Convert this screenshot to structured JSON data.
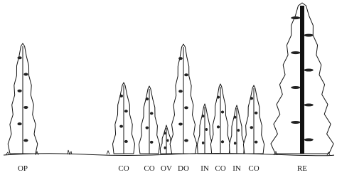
{
  "labels": [
    "OP",
    "CO",
    "CO",
    "OV",
    "DO",
    "IN",
    "CO",
    "IN",
    "CO",
    "RE"
  ]
}
